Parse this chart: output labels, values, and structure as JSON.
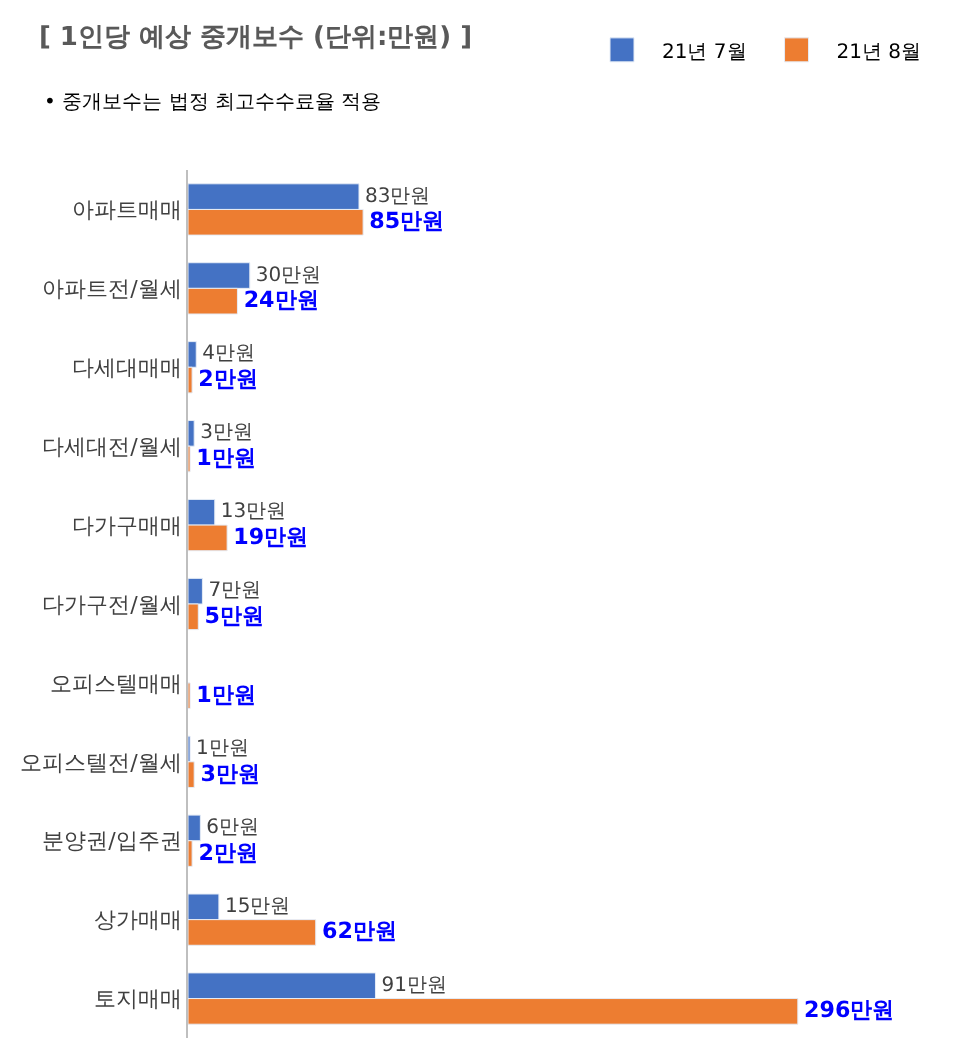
{
  "chart_data": {
    "type": "bar",
    "orientation": "horizontal",
    "title": "[ 1인당 예상 중개보수 (단위:만원) ]",
    "annotations": [
      "• 중개보수는 법정 최고수수료율 적용"
    ],
    "categories": [
      "아파트매매",
      "아파트전/월세",
      "다세대매매",
      "다세대전/월세",
      "다가구매매",
      "다가구전/월세",
      "오피스텔매매",
      "오피스텔전/월세",
      "분양권/입주권",
      "상가매매",
      "토지매매"
    ],
    "series": [
      {
        "name": "21년 7월",
        "color": "#4472c4",
        "values": [
          83,
          30,
          4,
          3,
          13,
          7,
          null,
          1,
          6,
          15,
          91
        ],
        "value_labels": [
          "83만원",
          "30만원",
          "4만원",
          "3만원",
          "13만원",
          "7만원",
          null,
          "1만원",
          "6만원",
          "15만원",
          "91만원"
        ]
      },
      {
        "name": "21년 8월",
        "color": "#ed7d31",
        "values": [
          85,
          24,
          2,
          1,
          19,
          5,
          1,
          3,
          2,
          62,
          296
        ],
        "value_labels": [
          "85만원",
          "24만원",
          "2만원",
          "1만원",
          "19만원",
          "5만원",
          "1만원",
          "3만원",
          "2만원",
          "62만원",
          "296만원"
        ]
      }
    ],
    "legend": "top right",
    "tick_labels": "y"
  }
}
